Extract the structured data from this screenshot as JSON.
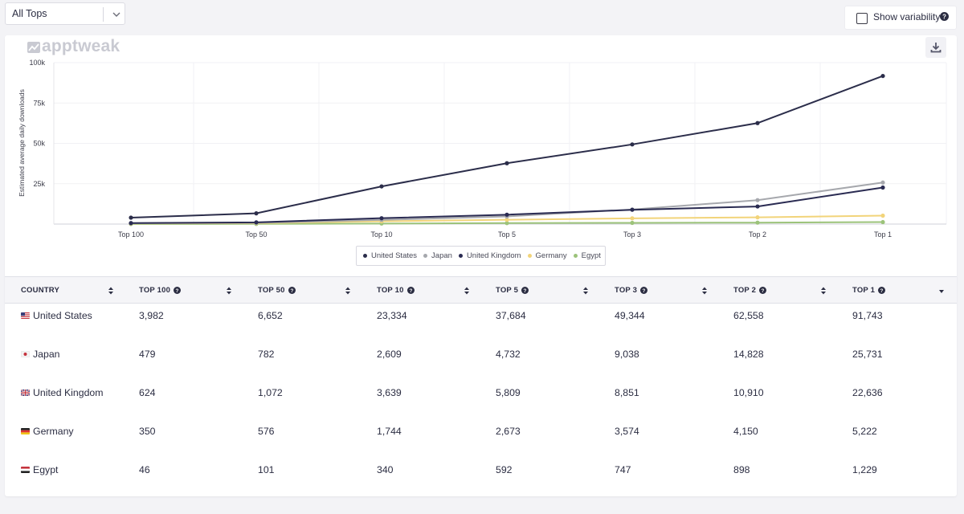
{
  "top_select": {
    "value": "All Tops"
  },
  "variability": {
    "label": "Show variability"
  },
  "logo": {
    "text": "apptweak"
  },
  "chart_data": {
    "type": "line",
    "ylabel": "Estimated average daily downloads",
    "xlabel": "",
    "categories": [
      "Top 100",
      "Top 50",
      "Top 10",
      "Top 5",
      "Top 3",
      "Top 2",
      "Top 1"
    ],
    "y_ticks": [
      "100k",
      "75k",
      "50k",
      "25k"
    ],
    "ylim": [
      0,
      100000
    ],
    "grid": true,
    "legend_position": "bottom",
    "series": [
      {
        "name": "United States",
        "color": "#2b2d4a",
        "values": [
          3982,
          6652,
          23334,
          37684,
          49344,
          62558,
          91743
        ]
      },
      {
        "name": "Japan",
        "color": "#a6a8ad",
        "values": [
          479,
          782,
          2609,
          4732,
          9038,
          14828,
          25731
        ]
      },
      {
        "name": "United Kingdom",
        "color": "#2a2b52",
        "values": [
          624,
          1072,
          3639,
          5809,
          8851,
          10910,
          22636
        ]
      },
      {
        "name": "Germany",
        "color": "#f2d47a",
        "values": [
          350,
          576,
          1744,
          2673,
          3574,
          4150,
          5222
        ]
      },
      {
        "name": "Egypt",
        "color": "#9cc37a",
        "values": [
          46,
          101,
          340,
          592,
          747,
          898,
          1229
        ]
      }
    ]
  },
  "table": {
    "headers": [
      "COUNTRY",
      "TOP 100",
      "TOP 50",
      "TOP 10",
      "TOP 5",
      "TOP 3",
      "TOP 2",
      "TOP 1"
    ],
    "rows": [
      {
        "country": "United States",
        "values": [
          "3,982",
          "6,652",
          "23,334",
          "37,684",
          "49,344",
          "62,558",
          "91,743"
        ]
      },
      {
        "country": "Japan",
        "values": [
          "479",
          "782",
          "2,609",
          "4,732",
          "9,038",
          "14,828",
          "25,731"
        ]
      },
      {
        "country": "United Kingdom",
        "values": [
          "624",
          "1,072",
          "3,639",
          "5,809",
          "8,851",
          "10,910",
          "22,636"
        ]
      },
      {
        "country": "Germany",
        "values": [
          "350",
          "576",
          "1,744",
          "2,673",
          "3,574",
          "4,150",
          "5,222"
        ]
      },
      {
        "country": "Egypt",
        "values": [
          "46",
          "101",
          "340",
          "592",
          "747",
          "898",
          "1,229"
        ]
      }
    ]
  }
}
